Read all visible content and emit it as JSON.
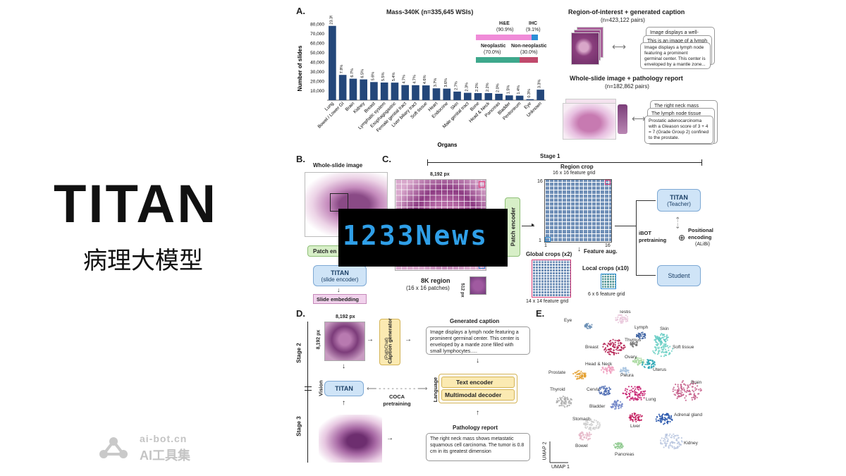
{
  "left": {
    "title": "TITAN",
    "subtitle": "病理大模型",
    "watermark_domain": "ai-bot.cn",
    "watermark_name": "AI工具集"
  },
  "overlay": {
    "brand": "1233News"
  },
  "panelA": {
    "letter": "A.",
    "chart_title": "Mass-340K (n=335,645 WSIs)",
    "he_label": "H&E",
    "he_pct": "(90.9%)",
    "ihc_label": "IHC",
    "ihc_pct": "(9.1%)",
    "neo_label": "Neoplastic",
    "neo_pct": "(70.0%)",
    "nonneo_label": "Non-neoplastic",
    "nonneo_pct": "(30.0%)",
    "roi_title": "Region-of-interest + generated caption",
    "roi_n": "(n=423,122 pairs)",
    "roi_cap1": "Image displays a well-",
    "roi_cap2": "This is an image of a lymph",
    "roi_cap3": "Image displays a lymph node featuring a prominent germinal center. This center is enveloped by a mantle zone...",
    "wsi_title": "Whole-slide image + pathology report",
    "wsi_n": "(n=182,862 pairs)",
    "wsi_rep1": "The right neck mass shows",
    "wsi_rep2": "The lymph node tissue from",
    "wsi_rep3": "Prostatic adenocarcinoma with a Gleason score of 3 + 4 = 7 (Grade Group 2) confined to the prostate."
  },
  "chart_data": {
    "type": "bar",
    "title": "Mass-340K (n=335,645 WSIs)",
    "xlabel": "Organs",
    "ylabel": "Number of slides",
    "ylim": [
      0,
      80000
    ],
    "yticks": [
      "10,000",
      "20,000",
      "30,000",
      "40,000",
      "50,000",
      "60,000",
      "70,000",
      "80,000"
    ],
    "categories": [
      "Lung",
      "Bowel / Lower GI",
      "Brain",
      "Kidney",
      "Breast",
      "Lymphatic system",
      "Esophagogastric",
      "Female genital tract",
      "Liver biliary tract",
      "Soft tissue",
      "Heart",
      "Endocrine",
      "Skin",
      "Male genital tract",
      "Bone",
      "Head & Neck",
      "Pancreas",
      "Bladder",
      "Peritoneum",
      "Eye",
      "Unknown"
    ],
    "values": [
      78000,
      26500,
      22500,
      21800,
      19000,
      18500,
      18400,
      15800,
      15700,
      15500,
      12400,
      12100,
      9000,
      7700,
      7400,
      7400,
      6700,
      5000,
      4700,
      1000,
      11000
    ],
    "labels": [
      "23.3%",
      "7.9%",
      "6.7%",
      "6.5%",
      "5.6%",
      "5.5%",
      "5.4%",
      "4.7%",
      "4.7%",
      "4.6%",
      "3.7%",
      "3.6%",
      "2.7%",
      "2.3%",
      "2.2%",
      "2.2%",
      "2.0%",
      "1.5%",
      "1.4%",
      "0.3%",
      "3.3%"
    ],
    "bar_color": "#24477a"
  },
  "panelB": {
    "letter": "B.",
    "wsi_label": "Whole-slide image",
    "patch_encoder": "Patch en",
    "titan_title": "TITAN",
    "titan_sub": "(slide encoder)",
    "slide_embedding": "Slide embedding"
  },
  "panelC": {
    "letter": "C.",
    "stage1": "Stage 1",
    "px_label": "8,192 px",
    "region_title": "8K region",
    "region_sub": "(16 x 16 patches)",
    "patch_px": "512 px",
    "patch_encoder": "Patch encoder",
    "region_crop": "Region crop",
    "region_grid": "16 x 16 feature grid",
    "axis_16": "16",
    "axis_1": "1",
    "axis_1b": "1",
    "axis_16b": "16",
    "global_crops": "Global crops (x2)",
    "feature_aug": "Feature aug.",
    "global_grid": "14 x 14 feature grid",
    "local_crops": "Local crops (x10)",
    "local_grid": "6 x 6 feature grid",
    "teacher_title": "TITAN",
    "teacher_sub": "(Teacher)",
    "student": "Student",
    "ibot": "iBOT pretraining",
    "pos_enc": "Positional encoding",
    "pos_sub": "(ALiBi)"
  },
  "panelD": {
    "letter": "D.",
    "px_top": "8,192 px",
    "px_side": "8,192 px",
    "stage2": "Stage 2",
    "stage3": "Stage 3",
    "vision": "Vision",
    "language": "Language",
    "caption_gen": "Caption generator",
    "caption_gen_sub": "(PathChat)",
    "generated_caption": "Generated caption",
    "caption_text": "Image displays a lymph node featuring a prominent germinal center. This center is enveloped by a mantle zone filled with small lymphocytes.....",
    "titan": "TITAN",
    "coca": "COCA pretraining",
    "text_encoder": "Text encoder",
    "mm_decoder": "Multimodal decoder",
    "report_title": "Pathology report",
    "report_text": "The right neck mass shows metastatic squamous cell carcinoma. The tumor is 0.8 cm in its greatest dimension"
  },
  "panelE": {
    "letter": "E.",
    "umap1": "UMAP 1",
    "umap2": "UMAP 2",
    "clusters": [
      "Eye",
      "Testis",
      "Lymph",
      "Skin",
      "Thymus",
      "Breast",
      "Soft tissue",
      "Ovary",
      "Uterus",
      "Head & Neck",
      "Pleura",
      "Prostate",
      "Brain",
      "Thyroid",
      "Cervix",
      "Lung",
      "Bladder",
      "Adrenal gland",
      "Stomach",
      "Liver",
      "Bowel",
      "Kidney",
      "Pancreas"
    ]
  }
}
